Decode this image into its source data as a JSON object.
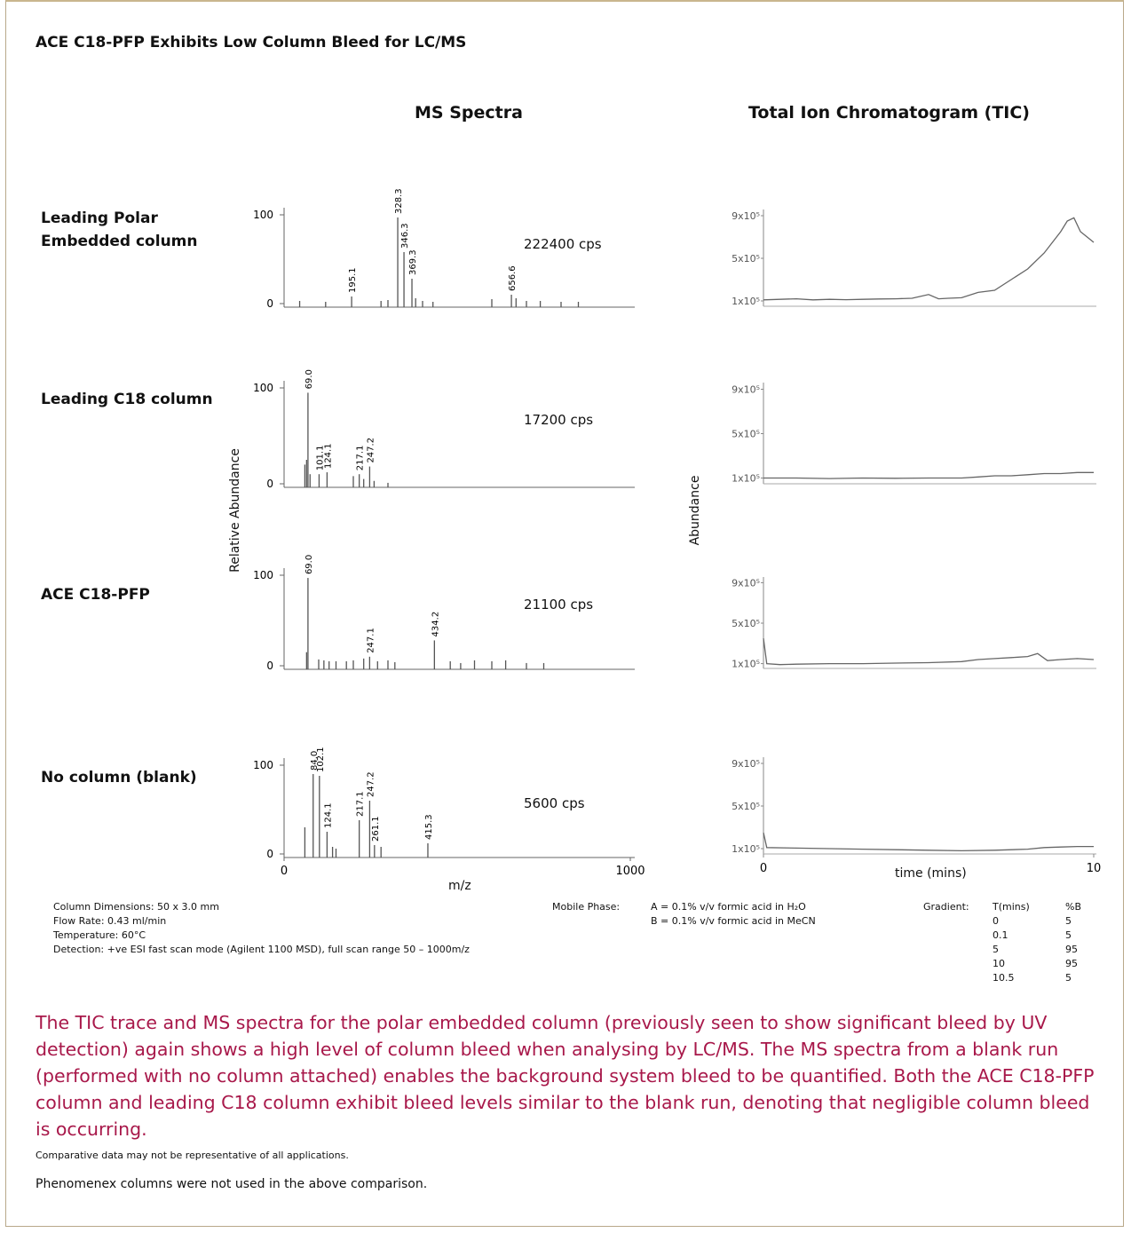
{
  "title": "ACE C18-PFP Exhibits Low Column Bleed for LC/MS",
  "ms_heading": "MS Spectra",
  "tic_heading": "Total Ion Chromatogram (TIC)",
  "ms_axis": {
    "y_label": "Relative Abundance",
    "x_label": "m/z",
    "xlim": [
      0,
      1000
    ],
    "xticks": [
      0,
      1000
    ],
    "ylim": [
      0,
      100
    ],
    "yticks": [
      0,
      100
    ],
    "color": "#555555"
  },
  "tic_axis": {
    "y_label": "Abundance",
    "x_label": "time (mins)",
    "xlim": [
      0,
      10
    ],
    "xticks": [
      0,
      10
    ],
    "ylim": [
      0,
      1000000
    ],
    "yticks": [
      {
        "value": 100000,
        "label": "1x10⁵"
      },
      {
        "value": 500000,
        "label": "5x10⁵"
      },
      {
        "value": 900000,
        "label": "9x10⁵"
      }
    ],
    "color": "#666666"
  },
  "rows": [
    {
      "label": [
        "Leading Polar",
        "Embedded column"
      ],
      "cps": "222400 cps",
      "peaks": [
        {
          "x": 45,
          "y": 3
        },
        {
          "x": 120,
          "y": 2
        },
        {
          "x": 195.1,
          "y": 8,
          "label": "195.1"
        },
        {
          "x": 280,
          "y": 3
        },
        {
          "x": 300,
          "y": 4
        },
        {
          "x": 328.3,
          "y": 97,
          "label": "328.3"
        },
        {
          "x": 346.3,
          "y": 58,
          "label": "346.3"
        },
        {
          "x": 369.3,
          "y": 28,
          "label": "369.3"
        },
        {
          "x": 380,
          "y": 6
        },
        {
          "x": 400,
          "y": 3
        },
        {
          "x": 430,
          "y": 2
        },
        {
          "x": 600,
          "y": 5
        },
        {
          "x": 656.6,
          "y": 10,
          "label": "656.6"
        },
        {
          "x": 670,
          "y": 6
        },
        {
          "x": 700,
          "y": 3
        },
        {
          "x": 740,
          "y": 3
        },
        {
          "x": 800,
          "y": 2
        },
        {
          "x": 850,
          "y": 2
        }
      ],
      "tic": {
        "x": [
          0,
          0.5,
          1,
          1.5,
          2,
          2.5,
          3,
          3.5,
          4,
          4.5,
          5,
          5.3,
          5.6,
          6,
          6.5,
          7,
          7.5,
          8,
          8.5,
          9,
          9.2,
          9.4,
          9.6,
          9.8,
          10
        ],
        "values": [
          110000,
          115000,
          120000,
          110000,
          115000,
          112000,
          115000,
          118000,
          120000,
          125000,
          160000,
          120000,
          125000,
          130000,
          180000,
          200000,
          300000,
          400000,
          550000,
          750000,
          850000,
          880000,
          750000,
          700000,
          650000
        ]
      }
    },
    {
      "label": [
        "Leading C18 column"
      ],
      "cps": "17200 cps",
      "peaks": [
        {
          "x": 60,
          "y": 20
        },
        {
          "x": 65,
          "y": 25
        },
        {
          "x": 69.0,
          "y": 95,
          "label": "69.0"
        },
        {
          "x": 75,
          "y": 10
        },
        {
          "x": 101.1,
          "y": 10,
          "label": "101.1"
        },
        {
          "x": 124.1,
          "y": 12,
          "label": "124.1"
        },
        {
          "x": 200,
          "y": 8
        },
        {
          "x": 217.1,
          "y": 10,
          "label": "217.1"
        },
        {
          "x": 230,
          "y": 5
        },
        {
          "x": 247.2,
          "y": 18,
          "label": "247.2"
        },
        {
          "x": 260,
          "y": 3
        },
        {
          "x": 300,
          "y": 1
        }
      ],
      "tic": {
        "x": [
          0,
          1,
          2,
          3,
          4,
          5,
          6,
          6.5,
          7,
          7.5,
          8,
          8.5,
          9,
          9.5,
          10
        ],
        "values": [
          100000,
          100000,
          95000,
          100000,
          98000,
          100000,
          100000,
          110000,
          120000,
          120000,
          130000,
          140000,
          140000,
          150000,
          150000
        ]
      }
    },
    {
      "label": [
        "ACE C18-PFP"
      ],
      "cps": "21100 cps",
      "peaks": [
        {
          "x": 65,
          "y": 15
        },
        {
          "x": 69.0,
          "y": 97,
          "label": "69.0"
        },
        {
          "x": 100,
          "y": 7
        },
        {
          "x": 115,
          "y": 6
        },
        {
          "x": 130,
          "y": 5
        },
        {
          "x": 150,
          "y": 5
        },
        {
          "x": 180,
          "y": 5
        },
        {
          "x": 200,
          "y": 6
        },
        {
          "x": 230,
          "y": 8
        },
        {
          "x": 247.1,
          "y": 10,
          "label": "247.1"
        },
        {
          "x": 270,
          "y": 5
        },
        {
          "x": 300,
          "y": 6
        },
        {
          "x": 320,
          "y": 4
        },
        {
          "x": 434.2,
          "y": 28,
          "label": "434.2"
        },
        {
          "x": 480,
          "y": 5
        },
        {
          "x": 510,
          "y": 3
        },
        {
          "x": 550,
          "y": 6
        },
        {
          "x": 600,
          "y": 5
        },
        {
          "x": 640,
          "y": 6
        },
        {
          "x": 700,
          "y": 3
        },
        {
          "x": 750,
          "y": 3
        }
      ],
      "tic": {
        "x": [
          0,
          0.1,
          0.5,
          1,
          2,
          3,
          4,
          5,
          6,
          6.5,
          7,
          7.5,
          8,
          8.3,
          8.6,
          9,
          9.5,
          10
        ],
        "values": [
          350000,
          100000,
          90000,
          95000,
          100000,
          100000,
          105000,
          110000,
          120000,
          140000,
          150000,
          160000,
          170000,
          200000,
          130000,
          140000,
          150000,
          140000
        ]
      }
    },
    {
      "label": [
        "No column (blank)"
      ],
      "cps": "5600 cps",
      "peaks": [
        {
          "x": 60,
          "y": 30
        },
        {
          "x": 84.0,
          "y": 90,
          "label": "84.0"
        },
        {
          "x": 102.1,
          "y": 88,
          "label": "102.1"
        },
        {
          "x": 124.1,
          "y": 25,
          "label": "124.1"
        },
        {
          "x": 140,
          "y": 8
        },
        {
          "x": 150,
          "y": 6
        },
        {
          "x": 217.1,
          "y": 38,
          "label": "217.1"
        },
        {
          "x": 247.2,
          "y": 60,
          "label": "247.2"
        },
        {
          "x": 261.1,
          "y": 10,
          "label": "261.1"
        },
        {
          "x": 280,
          "y": 8
        },
        {
          "x": 415.3,
          "y": 12,
          "label": "415.3"
        }
      ],
      "tic": {
        "x": [
          0,
          0.1,
          1,
          2,
          3,
          4,
          5,
          6,
          7,
          8,
          8.5,
          9,
          9.5,
          10
        ],
        "values": [
          250000,
          110000,
          105000,
          100000,
          95000,
          90000,
          85000,
          80000,
          85000,
          95000,
          110000,
          115000,
          120000,
          120000
        ]
      }
    }
  ],
  "conditions": [
    "Column Dimensions: 50 x 3.0 mm",
    "Flow Rate: 0.43 ml/min",
    "Temperature: 60°C",
    "Detection: +ve ESI fast scan mode (Agilent 1100 MSD), full scan range 50 – 1000m/z"
  ],
  "mobile_phase": {
    "label": "Mobile Phase:",
    "lines": [
      "A = 0.1% v/v formic acid in H₂O",
      "B = 0.1% v/v formic acid in MeCN"
    ]
  },
  "gradient": {
    "label": "Gradient:",
    "header": [
      "T(mins)",
      "%B"
    ],
    "rows": [
      [
        "0",
        "5"
      ],
      [
        "0.1",
        "5"
      ],
      [
        "5",
        "95"
      ],
      [
        "10",
        "95"
      ],
      [
        "10.5",
        "5"
      ]
    ]
  },
  "summary": "The TIC trace and MS spectra for the polar embedded column (previously seen to show significant bleed by UV detection) again shows a high level of column bleed when analysing by LC/MS.  The MS spectra from a blank run (performed with no column attached) enables the background system bleed to be quantified.  Both the ACE C18-PFP column and leading C18 column exhibit bleed levels similar to the blank run, denoting that negligible column bleed is occurring.",
  "footnotes": [
    "Comparative data may not be representative of all applications.",
    "Phenomenex columns were not used in the above comparison."
  ]
}
